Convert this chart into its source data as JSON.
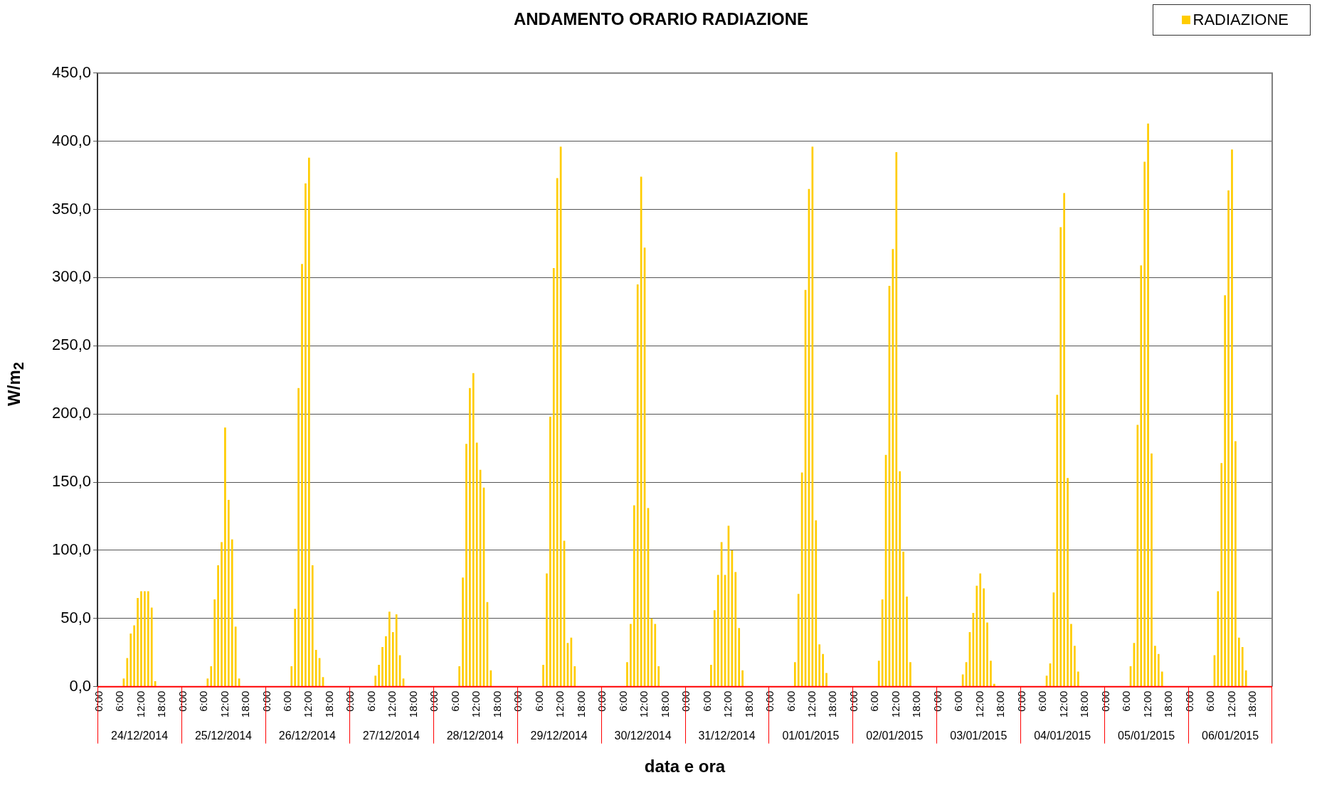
{
  "chart_data": {
    "type": "bar",
    "title": "ANDAMENTO ORARIO RADIAZIONE",
    "xlabel": "data e ora",
    "ylabel": "W/m$_{2}$",
    "categories": [
      "0:00",
      null,
      null,
      null,
      null,
      null,
      "6:00",
      null,
      null,
      null,
      null,
      null,
      "12:00",
      null,
      null,
      null,
      null,
      null,
      "18:00",
      null,
      null,
      null,
      null,
      null,
      "0:00",
      null,
      null,
      null,
      null,
      null,
      "6:00",
      null,
      null,
      null,
      null,
      null,
      "12:00",
      null,
      null,
      null,
      null,
      null,
      "18:00",
      null,
      null,
      null,
      null,
      null,
      "0:00",
      null,
      null,
      null,
      null,
      null,
      "6:00",
      null,
      null,
      null,
      null,
      null,
      "12:00",
      null,
      null,
      null,
      null,
      null,
      "18:00",
      null,
      null,
      null,
      null,
      null,
      "0:00",
      null,
      null,
      null,
      null,
      null,
      "6:00",
      null,
      null,
      null,
      null,
      null,
      "12:00",
      null,
      null,
      null,
      null,
      null,
      "18:00",
      null,
      null,
      null,
      null,
      null,
      "0:00",
      null,
      null,
      null,
      null,
      null,
      "6:00",
      null,
      null,
      null,
      null,
      null,
      "12:00",
      null,
      null,
      null,
      null,
      null,
      "18:00",
      null,
      null,
      null,
      null,
      null,
      "0:00",
      null,
      null,
      null,
      null,
      null,
      "6:00",
      null,
      null,
      null,
      null,
      null,
      "12:00",
      null,
      null,
      null,
      null,
      null,
      "18:00",
      null,
      null,
      null,
      null,
      null,
      "0:00",
      null,
      null,
      null,
      null,
      null,
      "6:00",
      null,
      null,
      null,
      null,
      null,
      "12:00",
      null,
      null,
      null,
      null,
      null,
      "18:00",
      null,
      null,
      null,
      null,
      null,
      "0:00",
      null,
      null,
      null,
      null,
      null,
      "6:00",
      null,
      null,
      null,
      null,
      null,
      "12:00",
      null,
      null,
      null,
      null,
      null,
      "18:00",
      null,
      null,
      null,
      null,
      null,
      "0:00",
      null,
      null,
      null,
      null,
      null,
      "6:00",
      null,
      null,
      null,
      null,
      null,
      "12:00",
      null,
      null,
      null,
      null,
      null,
      "18:00",
      null,
      null,
      null,
      null,
      null,
      "0:00",
      null,
      null,
      null,
      null,
      null,
      "6:00",
      null,
      null,
      null,
      null,
      null,
      "12:00",
      null,
      null,
      null,
      null,
      null,
      "18:00",
      null,
      null,
      null,
      null,
      null,
      "0:00",
      null,
      null,
      null,
      null,
      null,
      "6:00",
      null,
      null,
      null,
      null,
      null,
      "12:00",
      null,
      null,
      null,
      null,
      null,
      "18:00",
      null,
      null,
      null,
      null,
      null,
      "0:00",
      null,
      null,
      null,
      null,
      null,
      "6:00",
      null,
      null,
      null,
      null,
      null,
      "12:00",
      null,
      null,
      null,
      null,
      null,
      "18:00",
      null,
      null,
      null,
      null,
      null,
      "0:00",
      null,
      null,
      null,
      null,
      null,
      "6:00",
      null,
      null,
      null,
      null,
      null,
      "12:00",
      null,
      null,
      null,
      null,
      null,
      "18:00",
      null,
      null,
      null,
      null,
      null,
      "0:00",
      null,
      null,
      null,
      null,
      null,
      "6:00",
      null,
      null,
      null,
      null,
      null,
      "12:00",
      null,
      null,
      null,
      null,
      null,
      "18:00",
      null,
      null,
      null,
      null,
      null
    ],
    "series": [
      {
        "name": "RADIAZIONE",
        "color": "#ffcc00",
        "values": [
          0,
          0,
          0,
          0,
          0,
          0,
          0,
          6,
          21,
          39,
          45,
          65,
          70,
          70,
          70,
          58,
          4,
          0,
          0,
          0,
          0,
          0,
          0,
          0,
          0,
          0,
          0,
          0,
          0,
          0,
          0,
          6,
          15,
          64,
          89,
          106,
          190,
          137,
          108,
          44,
          6,
          0,
          0,
          0,
          0,
          0,
          0,
          0,
          0,
          0,
          0,
          0,
          0,
          0,
          0,
          15,
          57,
          219,
          310,
          369,
          388,
          89,
          27,
          21,
          7,
          0,
          0,
          0,
          0,
          0,
          0,
          0,
          0,
          0,
          0,
          0,
          0,
          0,
          0,
          8,
          16,
          29,
          37,
          55,
          40,
          53,
          23,
          6,
          0,
          0,
          0,
          0,
          0,
          0,
          0,
          0,
          0,
          0,
          0,
          0,
          0,
          0,
          0,
          15,
          80,
          178,
          219,
          230,
          179,
          159,
          146,
          62,
          12,
          0,
          0,
          0,
          0,
          0,
          0,
          0,
          0,
          0,
          0,
          0,
          0,
          0,
          0,
          16,
          83,
          198,
          307,
          373,
          396,
          107,
          32,
          36,
          15,
          0,
          0,
          0,
          0,
          0,
          0,
          0,
          0,
          0,
          0,
          0,
          0,
          0,
          0,
          18,
          46,
          133,
          295,
          374,
          322,
          131,
          50,
          46,
          15,
          0,
          0,
          0,
          0,
          0,
          0,
          0,
          0,
          0,
          0,
          0,
          0,
          0,
          0,
          16,
          56,
          82,
          106,
          82,
          118,
          100,
          84,
          43,
          12,
          0,
          0,
          0,
          0,
          0,
          0,
          0,
          0,
          0,
          0,
          0,
          0,
          0,
          0,
          18,
          68,
          157,
          291,
          365,
          396,
          122,
          31,
          24,
          10,
          0,
          0,
          0,
          0,
          0,
          0,
          0,
          0,
          0,
          0,
          0,
          0,
          0,
          0,
          19,
          64,
          170,
          294,
          321,
          392,
          158,
          99,
          66,
          18,
          0,
          0,
          0,
          0,
          0,
          0,
          0,
          0,
          0,
          0,
          0,
          0,
          0,
          0,
          9,
          18,
          40,
          54,
          74,
          83,
          72,
          47,
          19,
          2,
          0,
          0,
          0,
          0,
          0,
          0,
          0,
          0,
          0,
          0,
          0,
          0,
          0,
          0,
          8,
          17,
          69,
          214,
          337,
          362,
          153,
          46,
          30,
          11,
          0,
          0,
          0,
          0,
          0,
          0,
          0,
          0,
          0,
          0,
          0,
          0,
          0,
          0,
          15,
          32,
          192,
          309,
          385,
          413,
          171,
          30,
          24,
          11,
          0,
          0,
          0,
          0,
          0,
          0,
          0,
          0,
          0,
          0,
          0,
          0,
          0,
          0,
          23,
          70,
          164,
          287,
          364,
          394,
          180,
          36,
          29,
          12,
          0,
          0,
          0,
          0,
          0,
          0,
          0
        ]
      }
    ],
    "annotations": [
      "24/12/2014",
      "25/12/2014",
      "26/12/2014",
      "27/12/2014",
      "28/12/2014",
      "29/12/2014",
      "30/12/2014",
      "31/12/2014",
      "01/01/2015",
      "02/01/2015",
      "03/01/2015",
      "04/01/2015",
      "05/01/2015",
      "06/01/2015"
    ],
    "ylim": [
      0,
      450
    ],
    "yticks": [
      {
        "value": 0,
        "label": "0,0"
      },
      {
        "value": 50,
        "label": "50,0"
      },
      {
        "value": 100,
        "label": "100,0"
      },
      {
        "value": 150,
        "label": "150,0"
      },
      {
        "value": 200,
        "label": "200,0"
      },
      {
        "value": 250,
        "label": "250,0"
      },
      {
        "value": 300,
        "label": "300,0"
      },
      {
        "value": 350,
        "label": "350,0"
      },
      {
        "value": 400,
        "label": "400,0"
      },
      {
        "value": 450,
        "label": "450,0"
      }
    ],
    "grid": "y",
    "legend": "top right"
  }
}
